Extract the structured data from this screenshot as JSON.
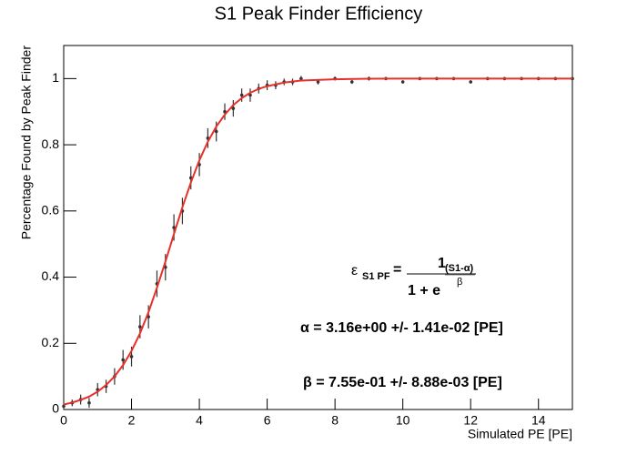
{
  "chart_data": {
    "type": "scatter",
    "title": "S1 Peak Finder Efficiency",
    "x_label": "Simulated PE [PE]",
    "y_label": "Percentage Found by Peak Finder",
    "xlim": [
      0,
      15
    ],
    "ylim": [
      0,
      1.1
    ],
    "xticks": [
      0,
      2,
      4,
      6,
      8,
      10,
      12,
      14
    ],
    "yticks": [
      0,
      0.2,
      0.4,
      0.6,
      0.8,
      1
    ],
    "series": [
      {
        "style": "points",
        "color": "#333333",
        "x": [
          0,
          0.25,
          0.5,
          0.75,
          1,
          1.25,
          1.5,
          1.75,
          2,
          2.25,
          2.5,
          2.75,
          3,
          3.25,
          3.5,
          3.75,
          4,
          4.25,
          4.5,
          4.75,
          5,
          5.25,
          5.5,
          5.75,
          6,
          6.25,
          6.5,
          6.75,
          7,
          7.5,
          8,
          8.5,
          9,
          9.5,
          10,
          10.5,
          11,
          11.5,
          12,
          12.5,
          13,
          13.5,
          14,
          14.5,
          15
        ],
        "values": [
          0.01,
          0.02,
          0.03,
          0.02,
          0.06,
          0.07,
          0.1,
          0.15,
          0.16,
          0.25,
          0.28,
          0.38,
          0.43,
          0.55,
          0.6,
          0.7,
          0.74,
          0.82,
          0.84,
          0.9,
          0.91,
          0.95,
          0.95,
          0.97,
          0.98,
          0.98,
          0.99,
          0.99,
          1.0,
          0.99,
          1.0,
          0.99,
          1.0,
          1.0,
          0.99,
          1.0,
          1.0,
          1.0,
          0.99,
          1.0,
          1.0,
          1.0,
          1.0,
          1.0,
          1.0
        ],
        "errors": [
          0.01,
          0.01,
          0.015,
          0.015,
          0.02,
          0.02,
          0.025,
          0.03,
          0.03,
          0.035,
          0.035,
          0.04,
          0.04,
          0.04,
          0.04,
          0.035,
          0.035,
          0.03,
          0.03,
          0.025,
          0.025,
          0.02,
          0.02,
          0.015,
          0.015,
          0.012,
          0.01,
          0.01,
          0.008,
          0.008,
          0.006,
          0.006,
          0.006,
          0.005,
          0.005,
          0.005,
          0.005,
          0.005,
          0.005,
          0.005,
          0.005,
          0.005,
          0.005,
          0.005,
          0.005
        ]
      },
      {
        "style": "line",
        "color": "#e8302a",
        "x": [
          0,
          0.25,
          0.5,
          0.75,
          1,
          1.25,
          1.5,
          1.75,
          2,
          2.25,
          2.5,
          2.75,
          3,
          3.25,
          3.5,
          3.75,
          4,
          4.25,
          4.5,
          4.75,
          5,
          5.25,
          5.5,
          5.75,
          6,
          6.5,
          7,
          8,
          9,
          10,
          12,
          15
        ],
        "values": [
          0.015,
          0.021,
          0.029,
          0.039,
          0.054,
          0.074,
          0.1,
          0.134,
          0.177,
          0.23,
          0.294,
          0.368,
          0.447,
          0.53,
          0.611,
          0.686,
          0.753,
          0.809,
          0.855,
          0.891,
          0.92,
          0.941,
          0.957,
          0.969,
          0.977,
          0.988,
          0.994,
          0.998,
          0.9995,
          0.9999,
          1.0,
          1.0
        ]
      }
    ],
    "annotations": {
      "epsilon": "ε",
      "epsilon_sub": "S1 PF",
      "equals": "=",
      "numerator": "1",
      "exponent_top": "(S1-α)",
      "exponent_bottom": "β",
      "denominator": "1 + e",
      "alpha": "α = 3.16e+00 +/- 1.41e-02 [PE]",
      "beta": "β = 7.55e-01 +/- 8.88e-03 [PE]"
    }
  }
}
